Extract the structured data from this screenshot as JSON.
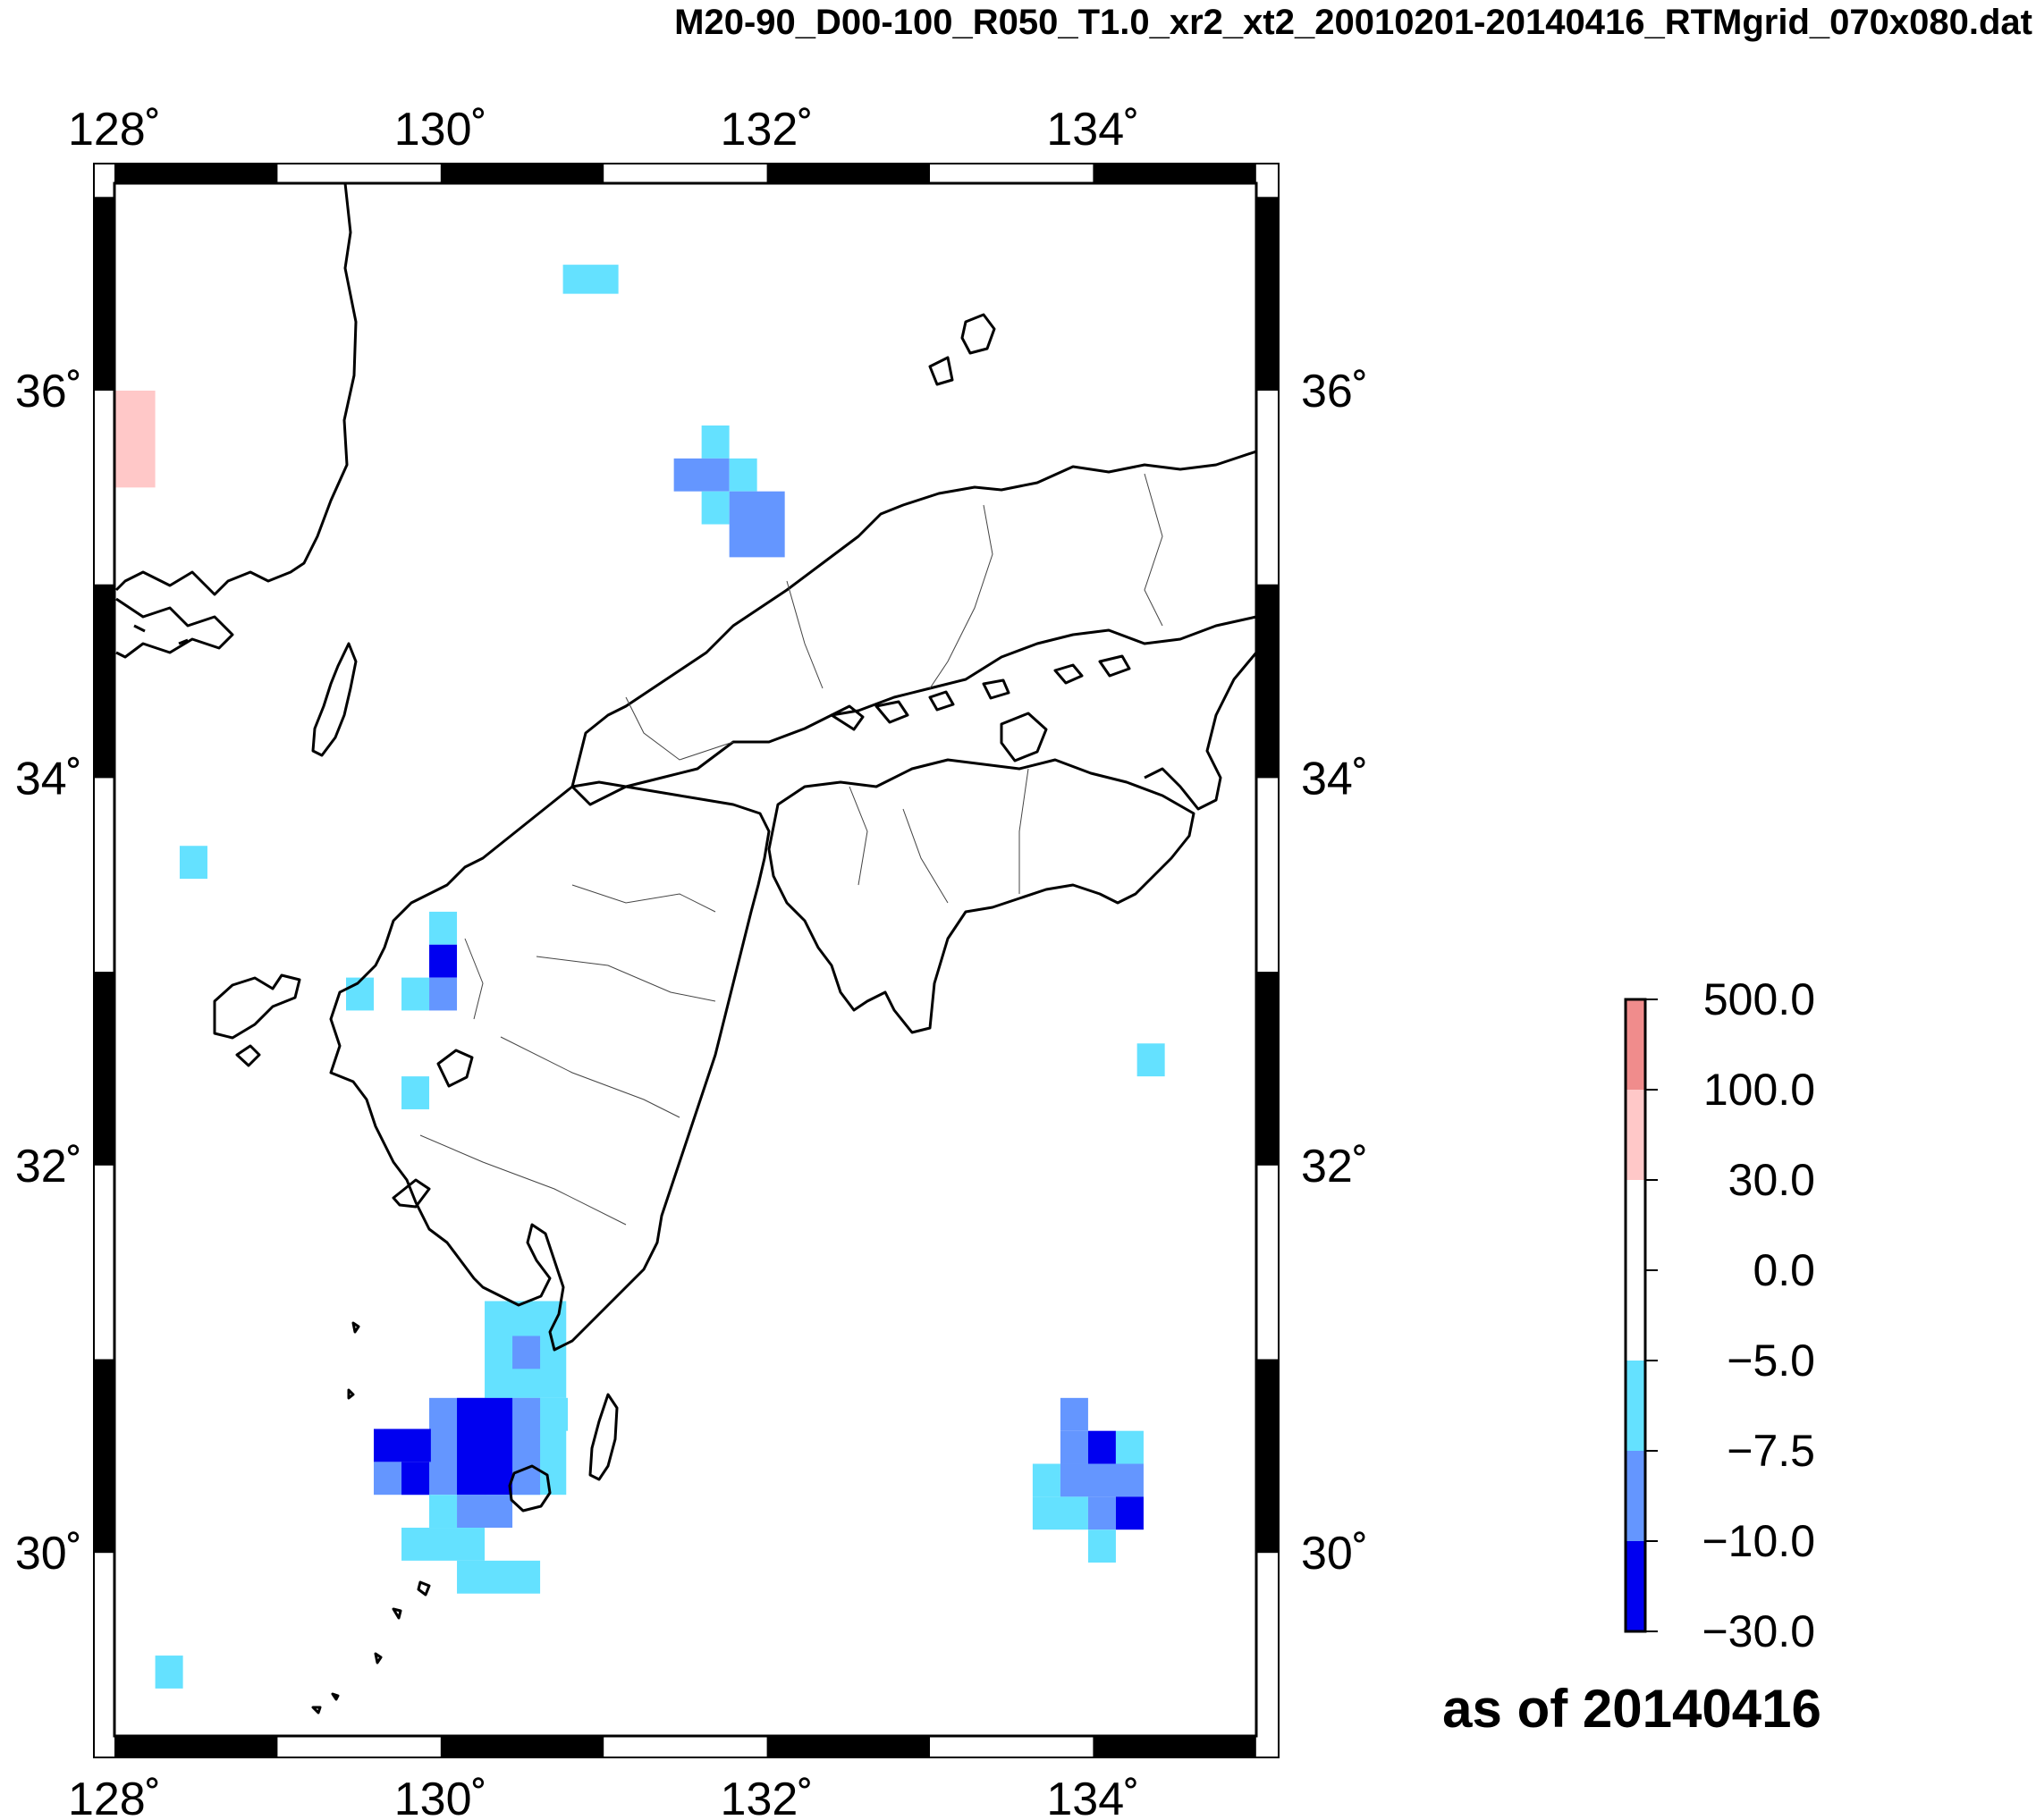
{
  "title": "M20-90_D00-100_R050_T1.0_xr2_xt2_20010201-20140416_RTMgrid_070x080.dat",
  "map": {
    "lon_range": [
      128,
      135
    ],
    "lat_range": [
      29.0,
      37.2
    ],
    "lon_ticks": [
      {
        "value": 128,
        "label": "128˚"
      },
      {
        "value": 130,
        "label": "130˚"
      },
      {
        "value": 132,
        "label": "132˚"
      },
      {
        "value": 134,
        "label": "134˚"
      }
    ],
    "lat_ticks": [
      {
        "value": 30,
        "label": "30˚"
      },
      {
        "value": 32,
        "label": "32˚"
      },
      {
        "value": 34,
        "label": "34˚"
      },
      {
        "value": 36,
        "label": "36˚"
      }
    ],
    "cells": [
      {
        "lon": 128.0,
        "lat": 35.5,
        "w": 0.25,
        "h": 0.5,
        "color": "#ffc8c8"
      },
      {
        "lon": 130.75,
        "lat": 36.5,
        "w": 0.34,
        "h": 0.15,
        "color": "#64e1ff"
      },
      {
        "lon": 131.6,
        "lat": 35.65,
        "w": 0.17,
        "h": 0.17,
        "color": "#64e1ff"
      },
      {
        "lon": 131.43,
        "lat": 35.48,
        "w": 0.34,
        "h": 0.17,
        "color": "#6496ff"
      },
      {
        "lon": 131.77,
        "lat": 35.48,
        "w": 0.17,
        "h": 0.17,
        "color": "#64e1ff"
      },
      {
        "lon": 131.6,
        "lat": 35.31,
        "w": 0.17,
        "h": 0.17,
        "color": "#64e1ff"
      },
      {
        "lon": 131.77,
        "lat": 35.14,
        "w": 0.34,
        "h": 0.34,
        "color": "#6496ff"
      },
      {
        "lon": 128.4,
        "lat": 33.48,
        "w": 0.17,
        "h": 0.17,
        "color": "#64e1ff"
      },
      {
        "lon": 129.93,
        "lat": 33.14,
        "w": 0.17,
        "h": 0.17,
        "color": "#64e1ff"
      },
      {
        "lon": 129.93,
        "lat": 32.97,
        "w": 0.17,
        "h": 0.17,
        "color": "#0000f0"
      },
      {
        "lon": 129.42,
        "lat": 32.8,
        "w": 0.17,
        "h": 0.17,
        "color": "#64e1ff"
      },
      {
        "lon": 129.76,
        "lat": 32.8,
        "w": 0.17,
        "h": 0.17,
        "color": "#64e1ff"
      },
      {
        "lon": 129.93,
        "lat": 32.8,
        "w": 0.17,
        "h": 0.17,
        "color": "#6496ff"
      },
      {
        "lon": 129.76,
        "lat": 32.29,
        "w": 0.17,
        "h": 0.17,
        "color": "#64e1ff"
      },
      {
        "lon": 134.27,
        "lat": 32.46,
        "w": 0.17,
        "h": 0.17,
        "color": "#64e1ff"
      },
      {
        "lon": 130.27,
        "lat": 30.8,
        "w": 0.5,
        "h": 0.5,
        "color": "#64e1ff"
      },
      {
        "lon": 130.44,
        "lat": 30.95,
        "w": 0.17,
        "h": 0.17,
        "color": "#6496ff"
      },
      {
        "lon": 130.27,
        "lat": 30.3,
        "w": 0.5,
        "h": 0.5,
        "color": "#64e1ff"
      },
      {
        "lon": 130.61,
        "lat": 30.63,
        "w": 0.17,
        "h": 0.17,
        "color": "#64e1ff"
      },
      {
        "lon": 129.93,
        "lat": 30.3,
        "w": 0.35,
        "h": 0.5,
        "color": "#6496ff"
      },
      {
        "lon": 129.59,
        "lat": 30.3,
        "w": 0.35,
        "h": 0.17,
        "color": "#6496ff"
      },
      {
        "lon": 130.44,
        "lat": 30.3,
        "w": 0.17,
        "h": 0.5,
        "color": "#6496ff"
      },
      {
        "lon": 129.59,
        "lat": 30.47,
        "w": 0.35,
        "h": 0.17,
        "color": "#0000f0"
      },
      {
        "lon": 129.76,
        "lat": 30.3,
        "w": 0.17,
        "h": 0.17,
        "color": "#0000f0"
      },
      {
        "lon": 130.1,
        "lat": 30.3,
        "w": 0.34,
        "h": 0.5,
        "color": "#0000f0"
      },
      {
        "lon": 129.93,
        "lat": 30.13,
        "w": 0.17,
        "h": 0.17,
        "color": "#64e1ff"
      },
      {
        "lon": 130.1,
        "lat": 30.13,
        "w": 0.34,
        "h": 0.17,
        "color": "#6496ff"
      },
      {
        "lon": 129.76,
        "lat": 29.96,
        "w": 0.51,
        "h": 0.17,
        "color": "#64e1ff"
      },
      {
        "lon": 130.1,
        "lat": 29.79,
        "w": 0.51,
        "h": 0.17,
        "color": "#64e1ff"
      },
      {
        "lon": 128.25,
        "lat": 29.3,
        "w": 0.17,
        "h": 0.17,
        "color": "#64e1ff"
      },
      {
        "lon": 133.8,
        "lat": 30.63,
        "w": 0.17,
        "h": 0.17,
        "color": "#6496ff"
      },
      {
        "lon": 133.8,
        "lat": 30.46,
        "w": 0.17,
        "h": 0.17,
        "color": "#6496ff"
      },
      {
        "lon": 133.97,
        "lat": 30.46,
        "w": 0.17,
        "h": 0.17,
        "color": "#0000f0"
      },
      {
        "lon": 134.14,
        "lat": 30.46,
        "w": 0.17,
        "h": 0.17,
        "color": "#64e1ff"
      },
      {
        "lon": 133.63,
        "lat": 30.29,
        "w": 0.17,
        "h": 0.17,
        "color": "#64e1ff"
      },
      {
        "lon": 133.8,
        "lat": 30.29,
        "w": 0.51,
        "h": 0.17,
        "color": "#6496ff"
      },
      {
        "lon": 133.63,
        "lat": 30.12,
        "w": 0.34,
        "h": 0.17,
        "color": "#64e1ff"
      },
      {
        "lon": 133.97,
        "lat": 30.12,
        "w": 0.17,
        "h": 0.17,
        "color": "#6496ff"
      },
      {
        "lon": 134.14,
        "lat": 30.12,
        "w": 0.17,
        "h": 0.17,
        "color": "#0000f0"
      },
      {
        "lon": 133.97,
        "lat": 29.95,
        "w": 0.17,
        "h": 0.17,
        "color": "#64e1ff"
      }
    ]
  },
  "colorbar": {
    "labels": [
      "500.0",
      "100.0",
      "30.0",
      "0.0",
      "−5.0",
      "−7.5",
      "−10.0",
      "−30.0"
    ],
    "colors": [
      "#f08c8c",
      "#ffc8c8",
      "#ffffff",
      "#ffffff",
      "#64e1ff",
      "#6496ff",
      "#0000f0"
    ]
  },
  "asof": "as of 20140416"
}
